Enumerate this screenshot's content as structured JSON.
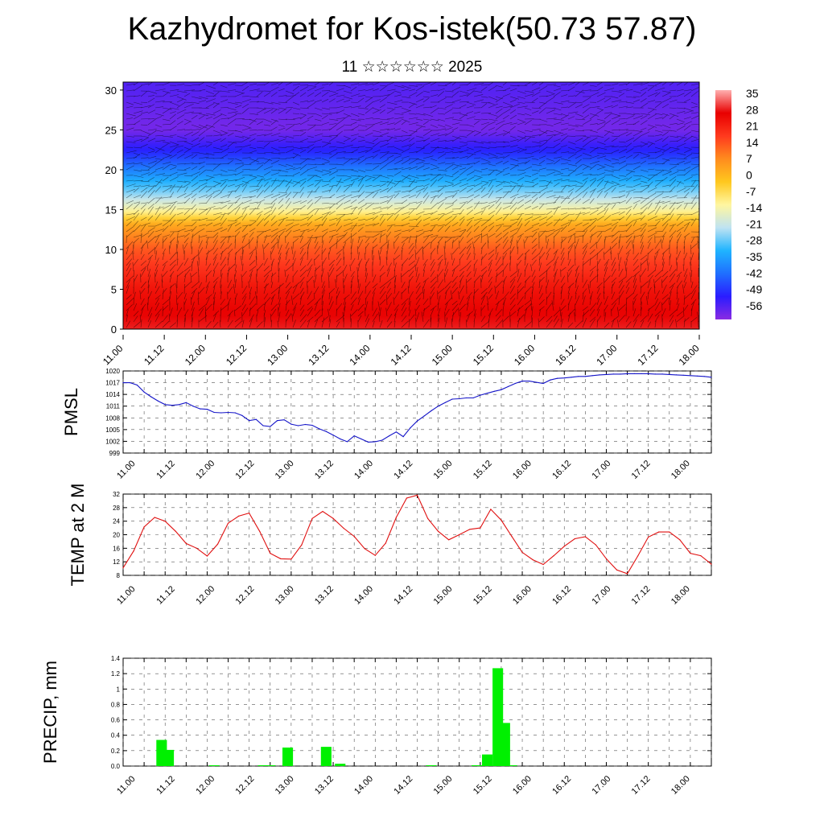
{
  "header": {
    "title": "Kazhydromet for Kos-istek(50.73 57.87)",
    "subtitle": "11 ☆☆☆☆☆☆ 2025"
  },
  "time_labels": [
    "11.00",
    "11.12",
    "12.00",
    "12.12",
    "13.00",
    "13.12",
    "14.00",
    "14.12",
    "15.00",
    "15.12",
    "16.00",
    "16.12",
    "17.00",
    "17.12",
    "18.00"
  ],
  "chart_data": [
    {
      "type": "heatmap",
      "title": "",
      "ylabel": "",
      "y_ticks": [
        "0",
        "5",
        "10",
        "15",
        "20",
        "25",
        "30"
      ],
      "ylim": [
        0,
        31
      ],
      "colorbar_labels": [
        "35",
        "28",
        "21",
        "14",
        "7",
        "0",
        "-7",
        "-14",
        "-21",
        "-28",
        "-35",
        "-42",
        "-49",
        "-56"
      ],
      "colorbar_range": [
        -60,
        38
      ],
      "colors": [
        "#8a2be2",
        "#2a1cff",
        "#1f6fff",
        "#1fb4ff",
        "#bfe3f2",
        "#fff6a0",
        "#ffc81e",
        "#ff8c1e",
        "#ff3a1e",
        "#e80000",
        "#ffb0b0"
      ],
      "profile": [
        {
          "height": 0,
          "value": 30
        },
        {
          "height": 5,
          "value": 25
        },
        {
          "height": 10,
          "value": 15
        },
        {
          "height": 13,
          "value": 5
        },
        {
          "height": 15,
          "value": -12
        },
        {
          "height": 17,
          "value": -24
        },
        {
          "height": 20,
          "value": -38
        },
        {
          "height": 22,
          "value": -48
        },
        {
          "height": 25,
          "value": -58
        },
        {
          "height": 28,
          "value": -56
        },
        {
          "height": 31,
          "value": -54
        }
      ]
    },
    {
      "type": "line",
      "ylabel": "PMSL",
      "ylim": [
        999,
        1020
      ],
      "y_ticks": [
        "1020",
        "1017",
        "1014",
        "1011",
        "1008",
        "1005",
        "1002",
        "999"
      ],
      "color": "#1414c8",
      "x": [
        0,
        2,
        4,
        6,
        8,
        10,
        12,
        14,
        16,
        18,
        20,
        22,
        24,
        26,
        28,
        30,
        32,
        34,
        36,
        38,
        40,
        42,
        44,
        46,
        48,
        50,
        52,
        54,
        56,
        58,
        60,
        62,
        64,
        66,
        68,
        70,
        72,
        74,
        76,
        78,
        80,
        82,
        84,
        86,
        88,
        90,
        92,
        94,
        96,
        98,
        100,
        102,
        104,
        106,
        108,
        110,
        112,
        114,
        116,
        118,
        120,
        122,
        124,
        126,
        128,
        130,
        132,
        134,
        136,
        138,
        140,
        142,
        144,
        146,
        148,
        150,
        152,
        154,
        156,
        158,
        160,
        162,
        164,
        166,
        168
      ],
      "values": [
        1017,
        1017,
        1016.4,
        1014.6,
        1013.4,
        1012.3,
        1011.4,
        1011.2,
        1011.4,
        1011.9,
        1011,
        1010.3,
        1010.2,
        1009.4,
        1009.3,
        1009.4,
        1009.3,
        1008.6,
        1007.3,
        1007.6,
        1006,
        1005.8,
        1007.3,
        1007.5,
        1006.4,
        1006,
        1006.3,
        1006.1,
        1005.2,
        1004.5,
        1003.6,
        1002.6,
        1001.9,
        1003.4,
        1002.6,
        1001.8,
        1001.9,
        1002.3,
        1003.4,
        1004.4,
        1003.2,
        1005.4,
        1007.2,
        1008.5,
        1009.8,
        1011,
        1011.9,
        1012.8,
        1012.9,
        1013.1,
        1013.1,
        1013.8,
        1014.3,
        1014.8,
        1015.2,
        1016,
        1016.8,
        1017.4,
        1017.4,
        1017.1,
        1016.8,
        1017.7,
        1018.1,
        1018.2,
        1018.4,
        1018.6,
        1018.6,
        1018.8,
        1019,
        1019.1,
        1019.2,
        1019.2,
        1019.3,
        1019.3,
        1019.3,
        1019.3,
        1019.2,
        1019.2,
        1019.1,
        1019,
        1018.9,
        1018.8,
        1018.7,
        1018.6,
        1018.4
      ]
    },
    {
      "type": "line",
      "ylabel": "TEMP at 2 M",
      "ylim": [
        8,
        32
      ],
      "y_ticks": [
        "32",
        "28",
        "24",
        "20",
        "16",
        "12",
        "8"
      ],
      "color": "#e01010",
      "x": [
        0,
        3,
        6,
        9,
        12,
        15,
        18,
        21,
        24,
        27,
        30,
        33,
        36,
        39,
        42,
        45,
        48,
        51,
        54,
        57,
        60,
        63,
        66,
        69,
        72,
        75,
        78,
        81,
        84,
        87,
        90,
        93,
        96,
        99,
        102,
        105,
        108,
        111,
        114,
        117,
        120,
        123,
        126,
        129,
        132,
        135,
        138,
        141,
        144,
        147,
        150,
        153,
        156,
        159,
        162,
        165,
        168
      ],
      "values": [
        10.2,
        15.2,
        22.3,
        25.1,
        24,
        21,
        17.4,
        16,
        13.7,
        17.2,
        23.4,
        25.5,
        26.4,
        21,
        14.5,
        12.9,
        12.8,
        17,
        24.8,
        26.9,
        24.8,
        21.9,
        19.5,
        15.9,
        13.9,
        17.5,
        25.1,
        30.8,
        31.7,
        24.8,
        21,
        18.5,
        20,
        21.6,
        22,
        27.5,
        24.3,
        19.5,
        14.8,
        12.6,
        11.2,
        13.8,
        16.6,
        18.8,
        19.4,
        17,
        12.9,
        9.6,
        8.5,
        13.7,
        19.3,
        20.8,
        20.8,
        18.5,
        14.5,
        13.8,
        11.3
      ]
    },
    {
      "type": "bar",
      "ylabel": "PRECIP, mm",
      "ylim": [
        0,
        1.4
      ],
      "y_ticks": [
        "1.4",
        "1.2",
        "1",
        "0.8",
        "0.6",
        "0.4",
        "0.2",
        "0.0"
      ],
      "color": "#00f000",
      "x": [
        11,
        13,
        26,
        40,
        42,
        47,
        58,
        62,
        88,
        101,
        104,
        107,
        109,
        111
      ],
      "values": [
        0.34,
        0.21,
        0.01,
        0.01,
        0.01,
        0.24,
        0.25,
        0.03,
        0.01,
        0.01,
        0.15,
        1.27,
        0.56,
        0.01
      ]
    }
  ]
}
